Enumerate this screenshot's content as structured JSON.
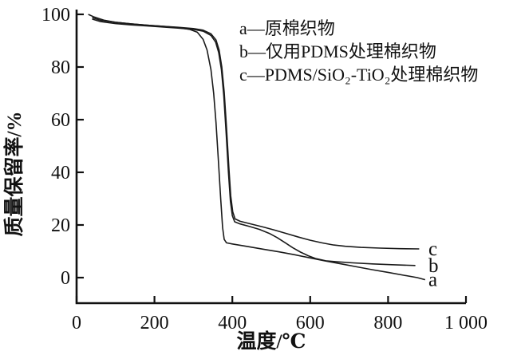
{
  "chart_data": {
    "type": "line",
    "title": "",
    "xlabel": "温度/℃",
    "ylabel": "质量保留率/%",
    "xlim": [
      0,
      1000
    ],
    "ylim": [
      -10,
      102
    ],
    "xticks": [
      0,
      200,
      400,
      600,
      800,
      1000
    ],
    "xtick_labels": [
      "0",
      "200",
      "400",
      "600",
      "800",
      "1 000"
    ],
    "yticks": [
      0,
      20,
      40,
      60,
      80,
      100
    ],
    "ytick_labels": [
      "0",
      "20",
      "40",
      "60",
      "80",
      "100"
    ],
    "grid": false,
    "legend_position": "top-right-inside",
    "legend": [
      "a—原棉织物",
      "b—仅用PDMS处理棉织物",
      "c—PDMS/SiO₂-TiO₂处理棉织物"
    ],
    "axis_color": "#111111",
    "line_color": "#1a1a1a",
    "background_color": "#ffffff",
    "series": [
      {
        "name": "a",
        "label": "原棉织物",
        "end_label": "a",
        "points": [
          [
            30,
            100
          ],
          [
            45,
            99
          ],
          [
            70,
            97.8
          ],
          [
            100,
            97
          ],
          [
            140,
            96.4
          ],
          [
            180,
            95.9
          ],
          [
            220,
            95.5
          ],
          [
            260,
            95.0
          ],
          [
            290,
            94.3
          ],
          [
            310,
            93.2
          ],
          [
            325,
            90.5
          ],
          [
            335,
            86.5
          ],
          [
            345,
            79
          ],
          [
            352,
            70
          ],
          [
            358,
            59
          ],
          [
            364,
            45
          ],
          [
            370,
            30
          ],
          [
            375,
            19
          ],
          [
            379,
            14.5
          ],
          [
            385,
            13.2
          ],
          [
            400,
            12.8
          ],
          [
            440,
            11.8
          ],
          [
            480,
            10.8
          ],
          [
            520,
            9.8
          ],
          [
            560,
            8.7
          ],
          [
            600,
            7.5
          ],
          [
            640,
            6.3
          ],
          [
            680,
            5.2
          ],
          [
            720,
            4.1
          ],
          [
            760,
            3.0
          ],
          [
            800,
            2.0
          ],
          [
            840,
            0.9
          ],
          [
            875,
            0
          ],
          [
            895,
            -0.8
          ]
        ]
      },
      {
        "name": "b",
        "label": "仅用PDMS处理棉织物",
        "end_label": "b",
        "points": [
          [
            40,
            98.2
          ],
          [
            60,
            97.3
          ],
          [
            100,
            96.5
          ],
          [
            140,
            96.0
          ],
          [
            180,
            95.6
          ],
          [
            220,
            95.2
          ],
          [
            260,
            94.8
          ],
          [
            300,
            94.3
          ],
          [
            325,
            93.6
          ],
          [
            345,
            92
          ],
          [
            357,
            89.5
          ],
          [
            365,
            85.5
          ],
          [
            372,
            79
          ],
          [
            378,
            69
          ],
          [
            384,
            55
          ],
          [
            390,
            40
          ],
          [
            395,
            29
          ],
          [
            400,
            23.5
          ],
          [
            406,
            21.2
          ],
          [
            420,
            20.4
          ],
          [
            445,
            19.4
          ],
          [
            470,
            18.3
          ],
          [
            495,
            16.8
          ],
          [
            515,
            15.2
          ],
          [
            535,
            13.3
          ],
          [
            555,
            11.4
          ],
          [
            575,
            9.7
          ],
          [
            595,
            8.3
          ],
          [
            615,
            7.2
          ],
          [
            640,
            6.4
          ],
          [
            670,
            6.0
          ],
          [
            710,
            5.6
          ],
          [
            760,
            5.2
          ],
          [
            810,
            4.9
          ],
          [
            870,
            4.6
          ]
        ]
      },
      {
        "name": "c",
        "label": "PDMS/SiO₂-TiO₂处理棉织物",
        "end_label": "c",
        "points": [
          [
            40,
            98.8
          ],
          [
            60,
            97.8
          ],
          [
            100,
            97.0
          ],
          [
            140,
            96.4
          ],
          [
            180,
            95.9
          ],
          [
            220,
            95.5
          ],
          [
            260,
            95.1
          ],
          [
            300,
            94.6
          ],
          [
            325,
            94
          ],
          [
            345,
            92.6
          ],
          [
            358,
            90.3
          ],
          [
            366,
            86.5
          ],
          [
            373,
            80
          ],
          [
            379,
            70.5
          ],
          [
            385,
            57
          ],
          [
            391,
            42
          ],
          [
            396,
            31
          ],
          [
            401,
            25
          ],
          [
            407,
            22.3
          ],
          [
            420,
            21.4
          ],
          [
            450,
            20.3
          ],
          [
            480,
            19.2
          ],
          [
            510,
            18.0
          ],
          [
            540,
            16.7
          ],
          [
            570,
            15.4
          ],
          [
            600,
            14.2
          ],
          [
            630,
            13.2
          ],
          [
            660,
            12.4
          ],
          [
            690,
            11.9
          ],
          [
            730,
            11.5
          ],
          [
            780,
            11.2
          ],
          [
            830,
            11.0
          ],
          [
            880,
            10.9
          ]
        ]
      }
    ]
  }
}
